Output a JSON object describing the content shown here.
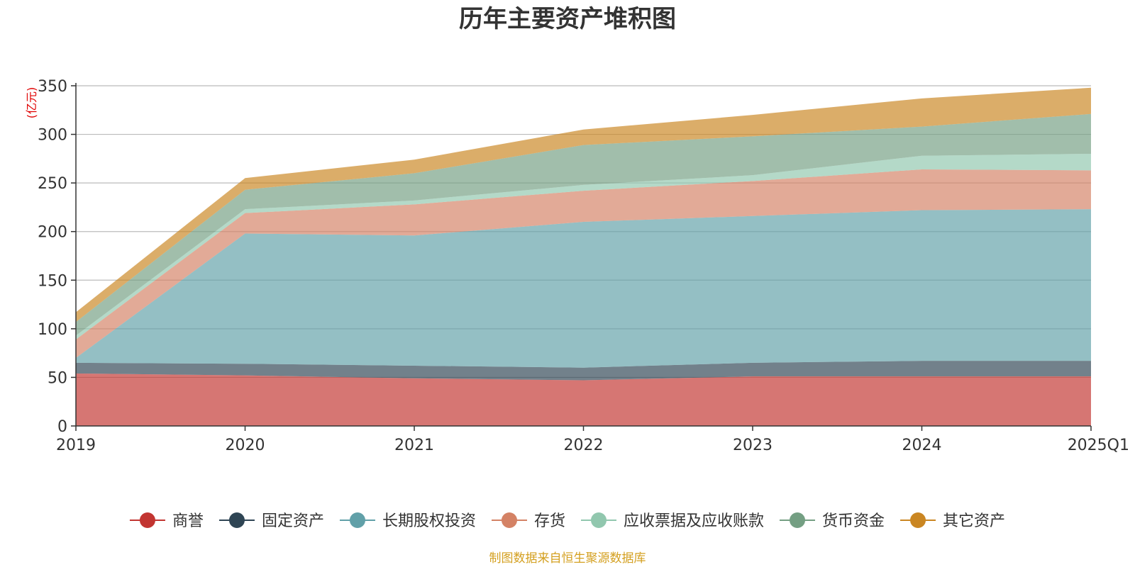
{
  "chart_data": {
    "type": "area",
    "stacked": true,
    "title": "历年主要资产堆积图",
    "unit": "(亿元)",
    "categories": [
      "2019",
      "2020",
      "2021",
      "2022",
      "2023",
      "2024",
      "2025Q1"
    ],
    "ylim": [
      0,
      350
    ],
    "yticks": [
      0,
      50,
      100,
      150,
      200,
      250,
      300,
      350
    ],
    "grid": true,
    "legend_position": "bottom",
    "series": [
      {
        "name": "商誉",
        "color": "#c23531",
        "values": [
          54,
          52,
          49,
          47,
          51,
          51,
          51
        ]
      },
      {
        "name": "固定资产",
        "color": "#2f4554",
        "values": [
          11,
          12,
          13,
          13,
          14,
          16,
          16
        ]
      },
      {
        "name": "长期股权投资",
        "color": "#61a0a8",
        "values": [
          5,
          134,
          134,
          150,
          151,
          155,
          156
        ]
      },
      {
        "name": "存货",
        "color": "#d48265",
        "values": [
          19,
          21,
          32,
          32,
          36,
          42,
          40
        ]
      },
      {
        "name": "应收票据及应收账款",
        "color": "#91c7ae",
        "values": [
          4,
          4,
          4,
          6,
          6,
          14,
          17
        ]
      },
      {
        "name": "货币资金",
        "color": "#749f83",
        "values": [
          14,
          20,
          28,
          41,
          40,
          30,
          41
        ]
      },
      {
        "name": "其它资产",
        "color": "#ca8622",
        "values": [
          10,
          12,
          14,
          16,
          22,
          29,
          27
        ]
      }
    ],
    "source_note": "制图数据来自恒生聚源数据库"
  }
}
